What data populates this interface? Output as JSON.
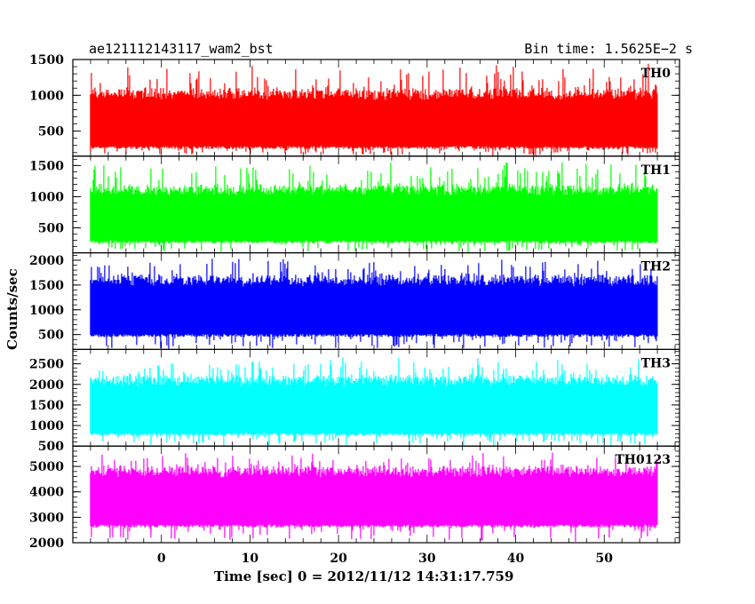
{
  "header": {
    "left_title": "ae121112143117_wam2_bst",
    "right_title": "Bin time: 1.5625E−2 s"
  },
  "chart_data": {
    "type": "line",
    "ylabel": "Counts/sec",
    "xlabel": "Time [sec] 0 = 2012/11/12 14:31:17.759",
    "xlim": [
      -10,
      58.5
    ],
    "x_ticks": [
      0,
      10,
      20,
      30,
      40,
      50
    ],
    "data_x_range": [
      -8,
      56
    ],
    "panels": [
      {
        "name": "TH0",
        "color": "#ff0000",
        "ylim": [
          150,
          1500
        ],
        "y_ticks": [
          500,
          1000,
          1500
        ],
        "baseline": 150,
        "typical_upper": 1050,
        "peak_max": 1450,
        "typical_lower": 250
      },
      {
        "name": "TH1",
        "color": "#00ff00",
        "ylim": [
          100,
          1650
        ],
        "y_ticks": [
          500,
          1000,
          1500
        ],
        "baseline": 100,
        "typical_upper": 1150,
        "peak_max": 1600,
        "typical_lower": 250
      },
      {
        "name": "TH2",
        "color": "#0000ff",
        "ylim": [
          200,
          2150
        ],
        "y_ticks": [
          500,
          1000,
          1500,
          2000
        ],
        "baseline": 200,
        "typical_upper": 1650,
        "peak_max": 2100,
        "typical_lower": 450
      },
      {
        "name": "TH3",
        "color": "#00ffff",
        "ylim": [
          500,
          2850
        ],
        "y_ticks": [
          500,
          1000,
          1500,
          2000,
          2500
        ],
        "baseline": 500,
        "typical_upper": 2150,
        "peak_max": 2700,
        "typical_lower": 750
      },
      {
        "name": "TH0123",
        "color": "#ff00ff",
        "ylim": [
          2000,
          5800
        ],
        "y_ticks": [
          2000,
          3000,
          4000,
          5000
        ],
        "baseline": 2000,
        "typical_upper": 4900,
        "peak_max": 5600,
        "typical_lower": 2600
      }
    ]
  }
}
